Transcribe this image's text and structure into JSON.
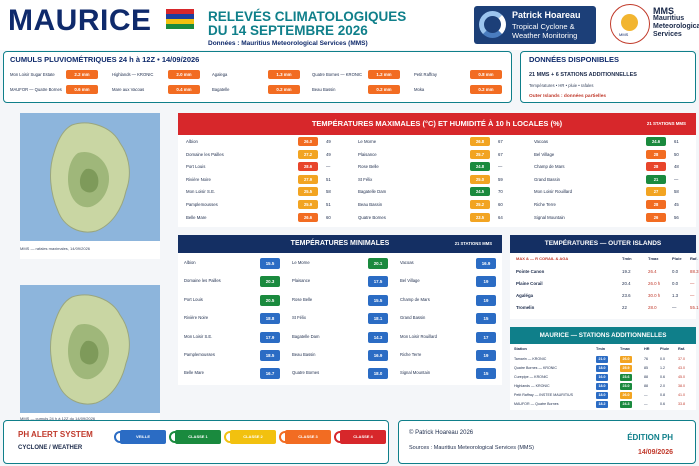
{
  "header": {
    "brand": "MAURICE",
    "title_line1": "RELEVÉS CLIMATOLOGIQUES",
    "title_line2": "DU 14 SEPTEMBRE 2026",
    "subtitle": "Données : Mauritius Meteorological Services (MMS)",
    "flag_colors": [
      "#d7272b",
      "#1c3f9f",
      "#f2c10f",
      "#1a8a3e"
    ],
    "ph_logo": {
      "line1": "Patrick Hoareau",
      "line2": "Tropical Cyclone &",
      "line3": "Weather Monitoring"
    },
    "mms_logo_text": "MMS",
    "mms": {
      "line1": "MMS",
      "line2": "Mauritius",
      "line3": "Meteorological",
      "line4": "Services"
    }
  },
  "rain": {
    "title": "CUMULS PLUVIOMÉTRIQUES 24 h à 12Z • 14/09/2026",
    "stations": [
      {
        "name": "Mon Loisir Sugar Estate",
        "value": "2.2 mm",
        "color": "#f26c22"
      },
      {
        "name": "Highlands — KRONIC",
        "value": "2.0 mm",
        "color": "#f26c22"
      },
      {
        "name": "Agalega",
        "value": "1.3 mm",
        "color": "#f26c22"
      },
      {
        "name": "Quatre Bornes — KRONIC",
        "value": "1.2 mm",
        "color": "#f26c22"
      },
      {
        "name": "Petit Raffray",
        "value": "0.8 mm",
        "color": "#f26c22"
      },
      {
        "name": "MAUFOR — Quatre Bornes",
        "value": "0.6 mm",
        "color": "#f26c22"
      },
      {
        "name": "Mare aux Vacoas",
        "value": "0.4 mm",
        "color": "#f26c22"
      },
      {
        "name": "Bagatelle",
        "value": "0.2 mm",
        "color": "#f26c22"
      },
      {
        "name": "Beau Bassin",
        "value": "0.2 mm",
        "color": "#f26c22"
      },
      {
        "name": "Moka",
        "value": "0.2 mm",
        "color": "#f26c22"
      }
    ]
  },
  "available": {
    "title": "DONNÉES DISPONIBLES",
    "line1": "21 MMS + 6 STATIONS ADDITIONNELLES",
    "line2": "Températures • HR • pluie • rafales",
    "line3": "Outer Islands : données partielles"
  },
  "maps": {
    "caption1": "MMS — rafales maximales, 14/09/2026",
    "caption2": "MMS — cumuls 24 h à 12Z du 14/09/2026"
  },
  "max": {
    "title": "TEMPÉRATURES MAXIMALES (°C) ET HUMIDITÉ À 10 h LOCALES (%)",
    "count": "21 STATIONS MMS",
    "rows": [
      {
        "name": "Albion",
        "t": "26.0",
        "h": "49",
        "color": "#f26c22"
      },
      {
        "name": "Domaine les Pailles",
        "t": "27.2",
        "h": "49",
        "color": "#f2a422"
      },
      {
        "name": "Port Louis",
        "t": "28.6",
        "h": "—",
        "color": "#e8452b"
      },
      {
        "name": "Rivière Noire",
        "t": "27.9",
        "h": "51",
        "color": "#f2a422"
      },
      {
        "name": "Mon Loisir S.E.",
        "t": "25.5",
        "h": "58",
        "color": "#f2a422"
      },
      {
        "name": "Pamplemousses",
        "t": "25.9",
        "h": "51",
        "color": "#f2a422"
      },
      {
        "name": "Belle Mare",
        "t": "26.6",
        "h": "60",
        "color": "#f26c22"
      },
      {
        "name": "Le Morne",
        "t": "26.8",
        "h": "67",
        "color": "#f2a422"
      },
      {
        "name": "Plaisance",
        "t": "25.7",
        "h": "67",
        "color": "#f2a422"
      },
      {
        "name": "Rose Belle",
        "t": "24.8",
        "h": "—",
        "color": "#1a8a3e"
      },
      {
        "name": "St Félix",
        "t": "25.0",
        "h": "59",
        "color": "#f2a422"
      },
      {
        "name": "Bagatelle Dam",
        "t": "24.5",
        "h": "70",
        "color": "#1a8a3e"
      },
      {
        "name": "Beau Bassin",
        "t": "25.2",
        "h": "60",
        "color": "#f2a422"
      },
      {
        "name": "Quatre Bornes",
        "t": "23.5",
        "h": "64",
        "color": "#f2a422"
      },
      {
        "name": "Vacoas",
        "t": "24.6",
        "h": "61",
        "color": "#1a8a3e"
      },
      {
        "name": "Bel Village",
        "t": "28",
        "h": "50",
        "color": "#f26c22"
      },
      {
        "name": "Champ de Mars",
        "t": "28",
        "h": "48",
        "color": "#e8452b"
      },
      {
        "name": "Grand Bassin",
        "t": "21",
        "h": "—",
        "color": "#1a8a3e"
      },
      {
        "name": "Mon Loisir Rouillard",
        "t": "27",
        "h": "58",
        "color": "#f2a422"
      },
      {
        "name": "Riche Terre",
        "t": "28",
        "h": "45",
        "color": "#f26c22"
      },
      {
        "name": "Signal Mountain",
        "t": "26",
        "h": "56",
        "color": "#f26c22"
      }
    ]
  },
  "min": {
    "title": "TEMPÉRATURES MINIMALES",
    "count": "21 STATIONS MMS",
    "rows": [
      {
        "name": "Albion",
        "t": "15.5",
        "color": "#2b6cc4"
      },
      {
        "name": "Domaine les Pailles",
        "t": "20.3",
        "color": "#1a8a3e"
      },
      {
        "name": "Port Louis",
        "t": "20.5",
        "color": "#1a8a3e"
      },
      {
        "name": "Rivière Noire",
        "t": "18.8",
        "color": "#2b6cc4"
      },
      {
        "name": "Mon Loisir S.E.",
        "t": "17.9",
        "color": "#2b6cc4"
      },
      {
        "name": "Pamplemousses",
        "t": "18.5",
        "color": "#2b6cc4"
      },
      {
        "name": "Belle Mare",
        "t": "16.7",
        "color": "#2b6cc4"
      },
      {
        "name": "Le Morne",
        "t": "20.1",
        "color": "#1a8a3e"
      },
      {
        "name": "Plaisance",
        "t": "17.5",
        "color": "#2b6cc4"
      },
      {
        "name": "Rose Belle",
        "t": "15.5",
        "color": "#2b6cc4"
      },
      {
        "name": "St Félix",
        "t": "18.1",
        "color": "#2b6cc4"
      },
      {
        "name": "Bagatelle Dam",
        "t": "14.3",
        "color": "#2b6cc4"
      },
      {
        "name": "Beau Bassin",
        "t": "16.9",
        "color": "#2b6cc4"
      },
      {
        "name": "Quatre Bornes",
        "t": "18.0",
        "color": "#2b6cc4"
      },
      {
        "name": "Vacoas",
        "t": "16.9",
        "color": "#2b6cc4"
      },
      {
        "name": "Bel Village",
        "t": "19",
        "color": "#2b6cc4"
      },
      {
        "name": "Champ de Mars",
        "t": "19",
        "color": "#2b6cc4"
      },
      {
        "name": "Grand Bassin",
        "t": "15",
        "color": "#2b6cc4"
      },
      {
        "name": "Mon Loisir Rouillard",
        "t": "17",
        "color": "#2b6cc4"
      },
      {
        "name": "Riche Terre",
        "t": "19",
        "color": "#2b6cc4"
      },
      {
        "name": "Signal Mountain",
        "t": "15",
        "color": "#2b6cc4"
      }
    ]
  },
  "outer": {
    "title": "TEMPÉRATURES — OUTER ISLANDS",
    "columns": [
      "MAX & — R CORAIL & AGA",
      "Tmin",
      "Tmax",
      "Pluie",
      "Raf."
    ],
    "rows": [
      {
        "name": "Pointe Canon",
        "tmin": "19.2",
        "tmax": "26.4",
        "rain": "0.0",
        "gust": "88.3"
      },
      {
        "name": "Plaine Corail",
        "tmin": "20.4",
        "tmax": "26.0 h",
        "rain": "0.0",
        "gust": "—"
      },
      {
        "name": "Agaléga",
        "tmin": "23.6",
        "tmax": "30.0 h",
        "rain": "1.3",
        "gust": "—"
      },
      {
        "name": "Tromelin",
        "tmin": "22",
        "tmax": "28.0",
        "rain": "—",
        "gust": "55.1"
      }
    ]
  },
  "additional": {
    "title": "MAURICE — STATIONS ADDITIONNELLES",
    "columns": [
      "Station",
      "Tmin",
      "Tmax",
      "HR",
      "Pluie",
      "Raf."
    ],
    "rows": [
      {
        "name": "Tamarin — KRONIC",
        "tmin": "21.0",
        "tmax": "26.0",
        "hr": "76",
        "rain": "0.0",
        "gust": "37.0",
        "cmin": "#2b6cc4",
        "cmax": "#f2a422"
      },
      {
        "name": "Quatre Bornes — KRONIC",
        "tmin": "18.0",
        "tmax": "25.9",
        "hr": "85",
        "rain": "1.2",
        "gust": "43.0",
        "cmin": "#2b6cc4",
        "cmax": "#f2a422"
      },
      {
        "name": "Curepipe — KRONIC",
        "tmin": "16.0",
        "tmax": "23.6",
        "hr": "88",
        "rain": "0.6",
        "gust": "45.0",
        "cmin": "#2b6cc4",
        "cmax": "#1a8a3e"
      },
      {
        "name": "Highlands — KRONIC",
        "tmin": "18.0",
        "tmax": "23.0",
        "hr": "88",
        "rain": "2.0",
        "gust": "38.0",
        "cmin": "#2b6cc4",
        "cmax": "#1a8a3e"
      },
      {
        "name": "Petit Raffray — INSTEE MAURITIUS",
        "tmin": "18.0",
        "tmax": "26.0",
        "hr": "—",
        "rain": "0.8",
        "gust": "41.0",
        "cmin": "#2b6cc4",
        "cmax": "#f2a422"
      },
      {
        "name": "MAUFOR — Quatre Bornes",
        "tmin": "18.2",
        "tmax": "24.3",
        "hr": "—",
        "rain": "0.6",
        "gust": "33.8",
        "cmin": "#2b6cc4",
        "cmax": "#1a8a3e"
      }
    ]
  },
  "alert": {
    "title": "PH ALERT SYSTEM",
    "subtitle": "CYCLONE / WEATHER",
    "levels": [
      {
        "label": "VEILLE",
        "color": "#2b6cc4"
      },
      {
        "label": "CLASSE 1",
        "color": "#1a8a3e"
      },
      {
        "label": "CLASSE 2",
        "color": "#f2c10f"
      },
      {
        "label": "CLASSE 3",
        "color": "#f26c22"
      },
      {
        "label": "CLASSE 4",
        "color": "#d7272b"
      }
    ]
  },
  "footer": {
    "copyright": "© Patrick Hoareau 2026",
    "sources": "Sources : Mauritius Meteorological Services (MMS)",
    "edition": "ÉDITION PH",
    "date": "14/09/2026"
  }
}
